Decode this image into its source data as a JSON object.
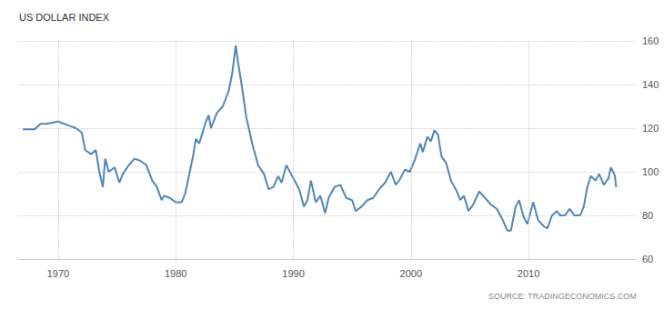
{
  "chart_data": {
    "type": "line",
    "title": "US DOLLAR INDEX",
    "annotations": [
      "SOURCE: TRADINGECONOMICS.COM"
    ],
    "x": [
      1967,
      1968,
      1968.5,
      1969,
      1970,
      1971,
      1971.5,
      1972,
      1972.3,
      1972.8,
      1973.2,
      1973.5,
      1973.8,
      1974,
      1974.3,
      1974.8,
      1975.2,
      1975.5,
      1976,
      1976.5,
      1977,
      1977.5,
      1978,
      1978.4,
      1978.8,
      1979,
      1979.5,
      1980,
      1980.5,
      1980.8,
      1981,
      1981.5,
      1981.7,
      1982,
      1982.5,
      1982.8,
      1983,
      1983.5,
      1984,
      1984.5,
      1984.8,
      1985.1,
      1985.3,
      1985.6,
      1986,
      1986.5,
      1987,
      1987.5,
      1987.9,
      1988.3,
      1988.7,
      1989,
      1989.4,
      1989.8,
      1990,
      1990.5,
      1990.9,
      1991.2,
      1991.5,
      1991.9,
      1992.3,
      1992.7,
      1993,
      1993.5,
      1994,
      1994.5,
      1995,
      1995.3,
      1995.8,
      1996.3,
      1996.8,
      1997.3,
      1997.8,
      1998.3,
      1998.7,
      1999,
      1999.5,
      1999.9,
      2000.3,
      2000.8,
      2001,
      2001.4,
      2001.7,
      2002,
      2002.3,
      2002.6,
      2003,
      2003.4,
      2003.9,
      2004.2,
      2004.5,
      2004.9,
      2005.3,
      2005.8,
      2006.3,
      2006.8,
      2007.3,
      2007.8,
      2008.2,
      2008.5,
      2008.9,
      2009.2,
      2009.6,
      2009.9,
      2010.4,
      2010.8,
      2011.3,
      2011.6,
      2012,
      2012.4,
      2012.7,
      2013.1,
      2013.5,
      2013.9,
      2014.4,
      2014.7,
      2015,
      2015.3,
      2015.7,
      2016,
      2016.4,
      2016.8,
      2017,
      2017.2,
      2017.35,
      2017.45
    ],
    "values": [
      119.5,
      119.5,
      122,
      122,
      123,
      121,
      120,
      118,
      110,
      108,
      110,
      100,
      93,
      106,
      100,
      102,
      95,
      99,
      103,
      106,
      105,
      103,
      96,
      93,
      87,
      89,
      88,
      86,
      86,
      90,
      95,
      108,
      115,
      113,
      122,
      126,
      120,
      127,
      130,
      137,
      145,
      158,
      150,
      140,
      125,
      113,
      103,
      99,
      92,
      93,
      98,
      95,
      103,
      99,
      97,
      92,
      84,
      87,
      96,
      86,
      89,
      81,
      88,
      93,
      94,
      88,
      87,
      82,
      84,
      87,
      88,
      92,
      95,
      100,
      94,
      96,
      101,
      100,
      105,
      113,
      109,
      116,
      114,
      119,
      117,
      107,
      104,
      96,
      91,
      87,
      89,
      82,
      85,
      91,
      88,
      85,
      83,
      78,
      73,
      73,
      84,
      87,
      79,
      76,
      86,
      78,
      75,
      74,
      80,
      82,
      80,
      80,
      83,
      80,
      80,
      84,
      93,
      98,
      96,
      99,
      94,
      97,
      102,
      100,
      98,
      93
    ],
    "color": "#4f87b5",
    "xlim": [
      1966.6,
      2019.2
    ],
    "xticks": [
      1970,
      1980,
      1990,
      2000,
      2010
    ],
    "ylim": [
      60,
      160
    ],
    "yticks": [
      60,
      80,
      100,
      120,
      140,
      160
    ],
    "grid": true
  }
}
